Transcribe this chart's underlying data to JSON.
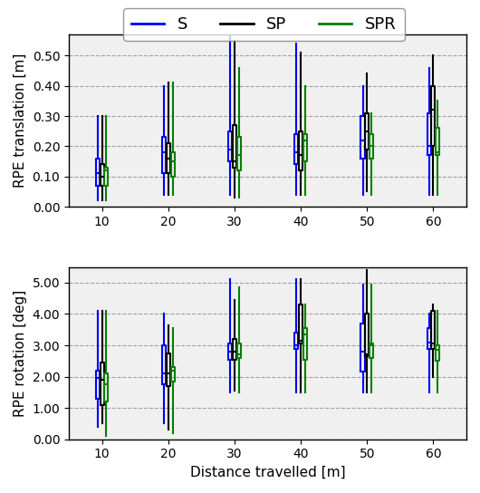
{
  "distances": [
    10,
    20,
    30,
    40,
    50,
    60
  ],
  "colors": {
    "S": "blue",
    "SP": "black",
    "SPR": "green"
  },
  "translation": {
    "S": {
      "whislo": [
        0.02,
        0.04,
        0.04,
        0.04,
        0.04,
        0.04
      ],
      "q1": [
        0.07,
        0.11,
        0.15,
        0.14,
        0.16,
        0.17
      ],
      "med": [
        0.11,
        0.18,
        0.19,
        0.18,
        0.22,
        0.2
      ],
      "q3": [
        0.16,
        0.23,
        0.25,
        0.24,
        0.3,
        0.31
      ],
      "whishi": [
        0.3,
        0.4,
        0.57,
        0.54,
        0.4,
        0.46
      ]
    },
    "SP": {
      "whislo": [
        0.02,
        0.04,
        0.03,
        0.04,
        0.05,
        0.04
      ],
      "q1": [
        0.07,
        0.11,
        0.13,
        0.12,
        0.19,
        0.2
      ],
      "med": [
        0.1,
        0.16,
        0.15,
        0.17,
        0.25,
        0.32
      ],
      "q3": [
        0.14,
        0.21,
        0.27,
        0.25,
        0.31,
        0.4
      ],
      "whishi": [
        0.3,
        0.41,
        0.55,
        0.51,
        0.44,
        0.5
      ]
    },
    "SPR": {
      "whislo": [
        0.02,
        0.04,
        0.03,
        0.04,
        0.04,
        0.04
      ],
      "q1": [
        0.07,
        0.1,
        0.12,
        0.15,
        0.16,
        0.17
      ],
      "med": [
        0.12,
        0.15,
        0.17,
        0.22,
        0.2,
        0.18
      ],
      "q3": [
        0.13,
        0.18,
        0.23,
        0.24,
        0.24,
        0.26
      ],
      "whishi": [
        0.3,
        0.41,
        0.46,
        0.4,
        0.31,
        0.35
      ]
    }
  },
  "rotation": {
    "S": {
      "whislo": [
        0.4,
        0.5,
        1.5,
        1.5,
        1.5,
        1.5
      ],
      "q1": [
        1.3,
        1.75,
        2.55,
        2.9,
        2.15,
        2.9
      ],
      "med": [
        1.95,
        2.1,
        2.8,
        3.0,
        2.8,
        3.1
      ],
      "q3": [
        2.2,
        3.0,
        3.05,
        3.4,
        3.7,
        3.55
      ],
      "whishi": [
        4.1,
        4.0,
        5.1,
        5.1,
        4.95,
        4.0
      ]
    },
    "SP": {
      "whislo": [
        0.5,
        0.3,
        1.55,
        1.5,
        1.5,
        2.0
      ],
      "q1": [
        1.1,
        1.7,
        2.55,
        3.05,
        2.65,
        2.9
      ],
      "med": [
        1.9,
        2.1,
        2.8,
        3.15,
        2.7,
        3.05
      ],
      "q3": [
        2.45,
        2.75,
        3.2,
        4.3,
        4.0,
        4.1
      ],
      "whishi": [
        4.1,
        3.65,
        4.45,
        5.1,
        5.4,
        4.3
      ]
    },
    "SPR": {
      "whislo": [
        0.1,
        0.2,
        1.5,
        1.5,
        1.5,
        1.5
      ],
      "q1": [
        1.2,
        1.85,
        2.6,
        2.55,
        2.6,
        2.5
      ],
      "med": [
        1.75,
        2.2,
        2.72,
        3.35,
        3.0,
        2.85
      ],
      "q3": [
        2.1,
        2.3,
        3.05,
        3.55,
        3.05,
        3.0
      ],
      "whishi": [
        4.1,
        3.55,
        4.85,
        4.3,
        4.95,
        4.1
      ]
    }
  },
  "translation_ylim": [
    0.0,
    0.57
  ],
  "rotation_ylim": [
    0.0,
    5.5
  ],
  "translation_yticks": [
    0.0,
    0.1,
    0.2,
    0.3,
    0.4,
    0.5
  ],
  "rotation_yticks": [
    0.0,
    1.0,
    2.0,
    3.0,
    4.0,
    5.0
  ],
  "xlabel": "Distance travelled [m]",
  "ylabel_top": "RPE translation [m]",
  "ylabel_bot": "RPE rotation [deg]",
  "legend_labels": [
    "S",
    "SP",
    "SPR"
  ],
  "background_color": "#f0f0f0"
}
